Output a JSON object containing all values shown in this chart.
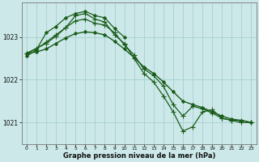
{
  "xlabel": "Graphe pression niveau de la mer (hPa)",
  "bg_color": "#cce8e8",
  "grid_color": "#aad4d4",
  "line_color": "#1a5c1a",
  "marker_color": "#1a5c1a",
  "ylim": [
    1020.5,
    1023.8
  ],
  "yticks": [
    1021,
    1022,
    1023
  ],
  "xlim": [
    -0.5,
    23.5
  ],
  "xticks": [
    0,
    1,
    2,
    3,
    4,
    5,
    6,
    7,
    8,
    9,
    10,
    11,
    12,
    13,
    14,
    15,
    16,
    17,
    18,
    19,
    20,
    21,
    22,
    23
  ],
  "series": [
    {
      "x": [
        0,
        1,
        2,
        3,
        4,
        5,
        6,
        7,
        8,
        9,
        10
      ],
      "y": [
        1022.55,
        1022.7,
        1023.1,
        1023.25,
        1023.45,
        1023.55,
        1023.6,
        1023.5,
        1023.45,
        1023.2,
        1023.0
      ],
      "marker": "D",
      "markersize": 2.0,
      "linewidth": 0.9
    },
    {
      "x": [
        0,
        1,
        2,
        3,
        4,
        5,
        6,
        7,
        8,
        9,
        10,
        11,
        12,
        13,
        14,
        15,
        16,
        17,
        18,
        19,
        20,
        21,
        22,
        23
      ],
      "y": [
        1022.62,
        1022.65,
        1022.72,
        1022.85,
        1022.98,
        1023.08,
        1023.12,
        1023.1,
        1023.05,
        1022.9,
        1022.72,
        1022.52,
        1022.3,
        1022.15,
        1021.95,
        1021.72,
        1021.5,
        1021.42,
        1021.35,
        1021.25,
        1021.15,
        1021.08,
        1021.05,
        1021.0
      ],
      "marker": "D",
      "markersize": 2.0,
      "linewidth": 1.0
    },
    {
      "x": [
        0,
        2,
        3,
        4,
        5,
        6,
        7,
        8,
        9,
        10,
        11,
        12,
        13,
        14,
        15,
        16,
        17,
        18,
        19,
        20,
        21,
        22,
        23
      ],
      "y": [
        1022.62,
        1022.85,
        1023.02,
        1023.22,
        1023.5,
        1023.55,
        1023.42,
        1023.35,
        1023.05,
        1022.85,
        1022.5,
        1022.15,
        1021.95,
        1021.62,
        1021.25,
        1020.8,
        1020.9,
        1021.25,
        1021.3,
        1021.1,
        1021.05,
        1021.0,
        1021.0
      ],
      "marker": "+",
      "markersize": 4.5,
      "linewidth": 0.9
    },
    {
      "x": [
        0,
        1,
        2,
        3,
        4,
        5,
        6,
        7,
        8,
        9,
        10,
        11,
        12,
        13,
        14,
        15,
        16,
        17,
        18,
        19,
        20,
        21,
        22,
        23
      ],
      "y": [
        1022.62,
        1022.72,
        1022.88,
        1023.05,
        1023.22,
        1023.38,
        1023.42,
        1023.32,
        1023.28,
        1023.1,
        1022.82,
        1022.58,
        1022.25,
        1022.1,
        1021.85,
        1021.42,
        1021.15,
        1021.38,
        1021.32,
        1021.22,
        1021.1,
        1021.05,
        1021.05,
        1021.0
      ],
      "marker": "+",
      "markersize": 4.5,
      "linewidth": 0.9
    }
  ]
}
